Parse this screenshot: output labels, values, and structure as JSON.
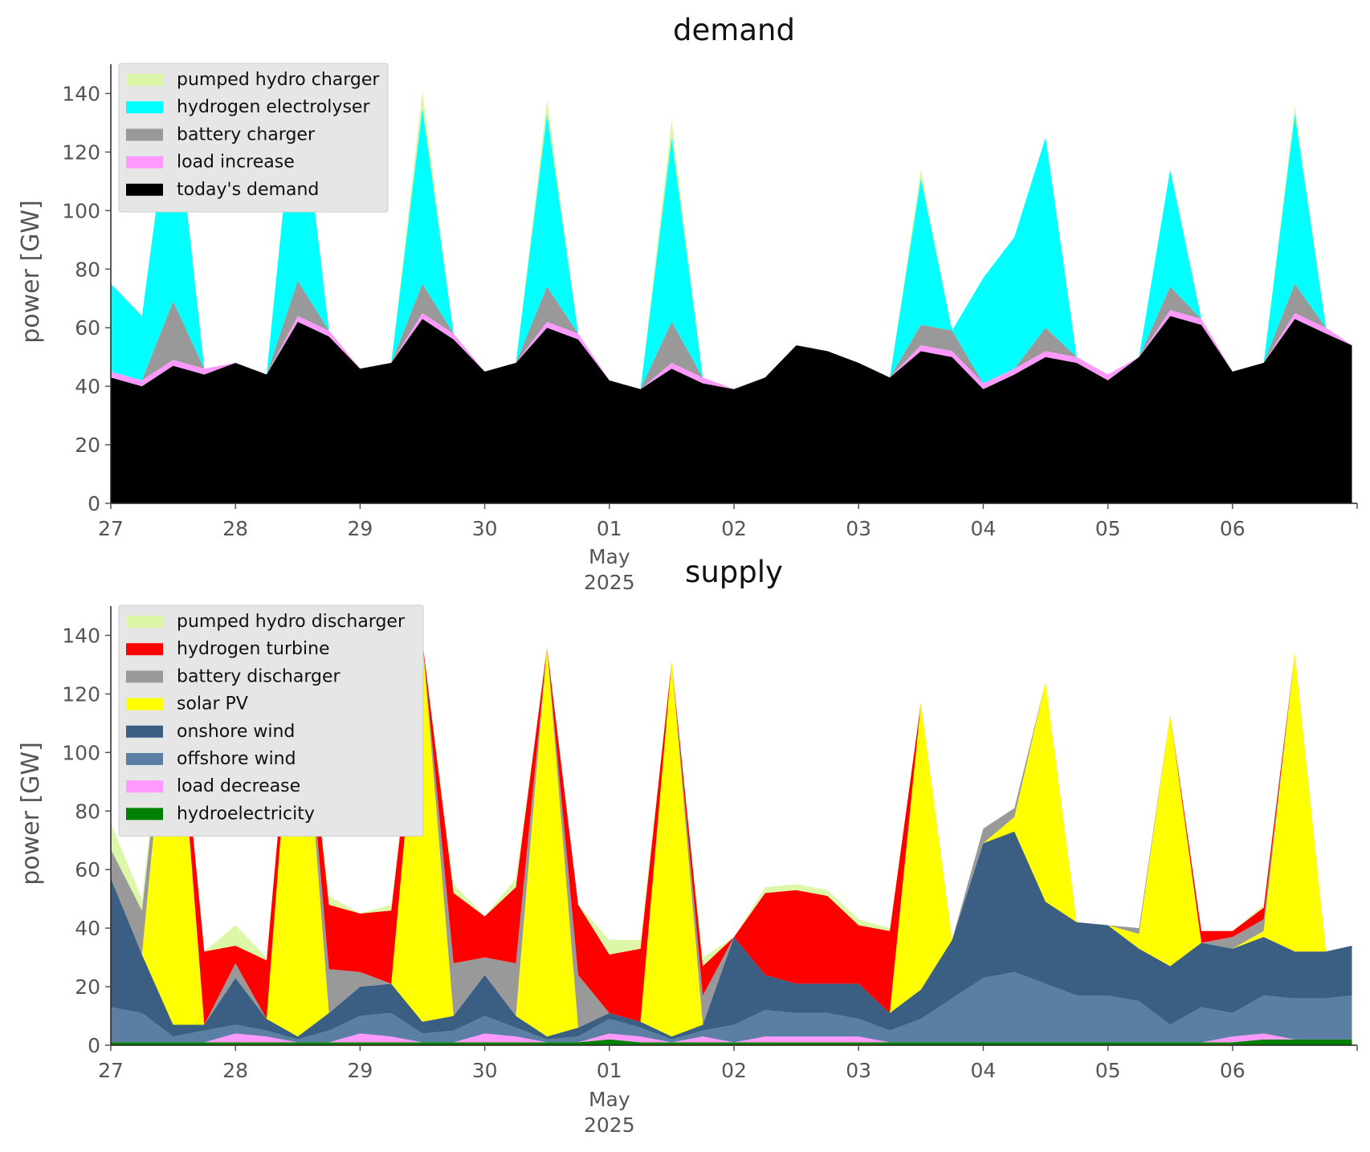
{
  "chart_data": [
    {
      "type": "area",
      "stacked": true,
      "title": "demand",
      "ylabel": "power [GW]",
      "xlabel": "",
      "ylim": [
        0,
        150
      ],
      "yticks": [
        0,
        20,
        40,
        60,
        80,
        100,
        120,
        140
      ],
      "x_days": [
        "27",
        "28",
        "29",
        "30",
        "01",
        "02",
        "03",
        "04",
        "05",
        "06"
      ],
      "x_month_label": "May",
      "x_year_label": "2025",
      "x_start": "2025-04-27 00:00",
      "x_end": "2025-05-07 00:00",
      "grid": true,
      "legend_position": "top-left",
      "legend": [
        {
          "label": "pumped hydro charger",
          "color": "#dcf7a8"
        },
        {
          "label": "hydrogen electrolyser",
          "color": "#00ffff"
        },
        {
          "label": "battery charger",
          "color": "#999999"
        },
        {
          "label": "load increase",
          "color": "#ff99ff"
        },
        {
          "label": "today's demand",
          "color": "#000000"
        }
      ],
      "x": [
        "2025-04-27 00:00",
        "2025-04-27 06:00",
        "2025-04-27 12:00",
        "2025-04-27 18:00",
        "2025-04-28 00:00",
        "2025-04-28 06:00",
        "2025-04-28 12:00",
        "2025-04-28 18:00",
        "2025-04-29 00:00",
        "2025-04-29 06:00",
        "2025-04-29 12:00",
        "2025-04-29 18:00",
        "2025-04-30 00:00",
        "2025-04-30 06:00",
        "2025-04-30 12:00",
        "2025-04-30 18:00",
        "2025-05-01 00:00",
        "2025-05-01 06:00",
        "2025-05-01 12:00",
        "2025-05-01 18:00",
        "2025-05-02 00:00",
        "2025-05-02 06:00",
        "2025-05-02 12:00",
        "2025-05-02 18:00",
        "2025-05-03 00:00",
        "2025-05-03 06:00",
        "2025-05-03 12:00",
        "2025-05-03 18:00",
        "2025-05-04 00:00",
        "2025-05-04 06:00",
        "2025-05-04 12:00",
        "2025-05-04 18:00",
        "2025-05-05 00:00",
        "2025-05-05 06:00",
        "2025-05-05 12:00",
        "2025-05-05 18:00",
        "2025-05-06 00:00",
        "2025-05-06 06:00",
        "2025-05-06 12:00",
        "2025-05-06 18:00",
        "2025-05-06 23:00"
      ],
      "series": [
        {
          "name": "today's demand",
          "color": "#000000",
          "values": [
            43,
            40,
            47,
            44,
            48,
            44,
            62,
            57,
            46,
            48,
            63,
            56,
            45,
            48,
            60,
            56,
            42,
            39,
            46,
            41,
            39,
            43,
            54,
            52,
            48,
            43,
            52,
            50,
            39,
            44,
            50,
            48,
            42,
            50,
            64,
            61,
            45,
            48,
            63,
            58,
            54
          ]
        },
        {
          "name": "load increase",
          "color": "#ff99ff",
          "values": [
            2,
            2,
            2,
            2,
            0,
            0,
            2,
            2,
            0,
            0,
            2,
            2,
            0,
            0,
            2,
            2,
            0,
            0,
            2,
            2,
            0,
            0,
            0,
            0,
            0,
            0,
            2,
            2,
            2,
            2,
            2,
            2,
            2,
            0,
            2,
            2,
            0,
            0,
            2,
            2,
            0
          ]
        },
        {
          "name": "battery charger",
          "color": "#999999",
          "values": [
            0,
            0,
            20,
            0,
            0,
            0,
            12,
            0,
            0,
            0,
            10,
            0,
            0,
            0,
            12,
            0,
            0,
            0,
            14,
            0,
            0,
            0,
            0,
            0,
            0,
            0,
            7,
            7,
            0,
            0,
            8,
            0,
            0,
            0,
            8,
            0,
            0,
            0,
            10,
            0,
            0
          ]
        },
        {
          "name": "hydrogen electrolyser",
          "color": "#00ffff",
          "values": [
            30,
            22,
            75,
            0,
            0,
            0,
            74,
            0,
            0,
            0,
            60,
            0,
            0,
            0,
            59,
            0,
            0,
            0,
            63,
            0,
            0,
            0,
            0,
            0,
            0,
            0,
            50,
            0,
            36,
            45,
            65,
            0,
            0,
            0,
            40,
            0,
            0,
            0,
            58,
            0,
            0
          ]
        },
        {
          "name": "pumped hydro charger",
          "color": "#dcf7a8",
          "values": [
            0,
            0,
            1,
            0,
            0,
            0,
            1,
            0,
            0,
            0,
            6,
            0,
            0,
            0,
            5,
            0,
            0,
            0,
            6,
            0,
            0,
            0,
            0,
            0,
            0,
            0,
            3,
            0,
            0,
            0,
            0,
            0,
            0,
            0,
            0,
            0,
            0,
            0,
            3,
            0,
            0
          ]
        }
      ]
    },
    {
      "type": "area",
      "stacked": true,
      "title": "supply",
      "ylabel": "power [GW]",
      "xlabel": "",
      "ylim": [
        0,
        150
      ],
      "yticks": [
        0,
        20,
        40,
        60,
        80,
        100,
        120,
        140
      ],
      "x_days": [
        "27",
        "28",
        "29",
        "30",
        "01",
        "02",
        "03",
        "04",
        "05",
        "06"
      ],
      "x_month_label": "May",
      "x_year_label": "2025",
      "x_start": "2025-04-27 00:00",
      "x_end": "2025-05-07 00:00",
      "grid": true,
      "legend_position": "top-left",
      "legend": [
        {
          "label": "pumped hydro discharger",
          "color": "#dcf7a8"
        },
        {
          "label": "hydrogen turbine",
          "color": "#ff0000"
        },
        {
          "label": "battery discharger",
          "color": "#999999"
        },
        {
          "label": "solar PV",
          "color": "#ffff00"
        },
        {
          "label": "onshore wind",
          "color": "#3a5f82"
        },
        {
          "label": "offshore wind",
          "color": "#5b7ea3"
        },
        {
          "label": "load decrease",
          "color": "#ff99ff"
        },
        {
          "label": "hydroelectricity",
          "color": "#008000"
        }
      ],
      "x": [
        "2025-04-27 00:00",
        "2025-04-27 06:00",
        "2025-04-27 12:00",
        "2025-04-27 18:00",
        "2025-04-28 00:00",
        "2025-04-28 06:00",
        "2025-04-28 12:00",
        "2025-04-28 18:00",
        "2025-04-29 00:00",
        "2025-04-29 06:00",
        "2025-04-29 12:00",
        "2025-04-29 18:00",
        "2025-04-30 00:00",
        "2025-04-30 06:00",
        "2025-04-30 12:00",
        "2025-04-30 18:00",
        "2025-05-01 00:00",
        "2025-05-01 06:00",
        "2025-05-01 12:00",
        "2025-05-01 18:00",
        "2025-05-02 00:00",
        "2025-05-02 06:00",
        "2025-05-02 12:00",
        "2025-05-02 18:00",
        "2025-05-03 00:00",
        "2025-05-03 06:00",
        "2025-05-03 12:00",
        "2025-05-03 18:00",
        "2025-05-04 00:00",
        "2025-05-04 06:00",
        "2025-05-04 12:00",
        "2025-05-04 18:00",
        "2025-05-05 00:00",
        "2025-05-05 06:00",
        "2025-05-05 12:00",
        "2025-05-05 18:00",
        "2025-05-06 00:00",
        "2025-05-06 06:00",
        "2025-05-06 12:00",
        "2025-05-06 18:00",
        "2025-05-06 23:00"
      ],
      "series": [
        {
          "name": "hydroelectricity",
          "color": "#008000",
          "values": [
            1,
            1,
            1,
            1,
            1,
            1,
            1,
            1,
            1,
            1,
            1,
            1,
            1,
            1,
            1,
            1,
            2,
            1,
            1,
            1,
            1,
            1,
            1,
            1,
            1,
            1,
            1,
            1,
            1,
            1,
            1,
            1,
            1,
            1,
            1,
            1,
            1,
            2,
            2,
            2,
            2
          ]
        },
        {
          "name": "load decrease",
          "color": "#ff99ff",
          "values": [
            0,
            0,
            0,
            0,
            3,
            2,
            0,
            0,
            3,
            2,
            0,
            0,
            3,
            2,
            0,
            0,
            2,
            2,
            0,
            2,
            0,
            2,
            2,
            2,
            2,
            0,
            0,
            0,
            0,
            0,
            0,
            0,
            0,
            0,
            0,
            0,
            2,
            2,
            0,
            0,
            0
          ]
        },
        {
          "name": "offshore wind",
          "color": "#5b7ea3",
          "values": [
            12,
            10,
            2,
            4,
            3,
            2,
            1,
            4,
            6,
            8,
            3,
            4,
            6,
            3,
            1,
            2,
            5,
            3,
            1,
            2,
            6,
            9,
            8,
            8,
            6,
            4,
            8,
            15,
            22,
            24,
            20,
            16,
            16,
            14,
            6,
            12,
            8,
            13,
            14,
            14,
            15
          ]
        },
        {
          "name": "onshore wind",
          "color": "#3a5f82",
          "values": [
            44,
            20,
            4,
            2,
            16,
            4,
            1,
            6,
            10,
            10,
            4,
            5,
            14,
            4,
            1,
            3,
            2,
            2,
            1,
            2,
            30,
            12,
            10,
            10,
            12,
            6,
            10,
            20,
            46,
            48,
            28,
            25,
            24,
            18,
            20,
            22,
            22,
            20,
            16,
            16,
            17
          ]
        },
        {
          "name": "solar PV",
          "color": "#ffff00",
          "values": [
            0,
            0,
            135,
            0,
            0,
            0,
            145,
            0,
            0,
            0,
            130,
            0,
            0,
            0,
            133,
            0,
            0,
            0,
            128,
            0,
            0,
            0,
            0,
            0,
            0,
            0,
            98,
            0,
            0,
            5,
            75,
            0,
            0,
            5,
            86,
            0,
            0,
            2,
            102,
            0,
            0
          ]
        },
        {
          "name": "battery discharger",
          "color": "#999999",
          "values": [
            10,
            15,
            0,
            0,
            5,
            0,
            0,
            15,
            5,
            0,
            0,
            18,
            6,
            18,
            0,
            18,
            0,
            0,
            0,
            10,
            0,
            0,
            0,
            0,
            0,
            0,
            0,
            0,
            5,
            3,
            0,
            0,
            0,
            2,
            0,
            0,
            4,
            4,
            0,
            0,
            0
          ]
        },
        {
          "name": "hydrogen turbine",
          "color": "#ff0000",
          "values": [
            0,
            0,
            0,
            25,
            6,
            20,
            0,
            22,
            20,
            25,
            0,
            24,
            14,
            26,
            0,
            24,
            20,
            25,
            0,
            10,
            0,
            28,
            32,
            30,
            20,
            28,
            0,
            0,
            0,
            0,
            0,
            0,
            0,
            0,
            0,
            4,
            2,
            4,
            0,
            0,
            0
          ]
        },
        {
          "name": "pumped hydro discharger",
          "color": "#dcf7a8",
          "values": [
            9,
            4,
            0,
            0,
            7,
            1,
            0,
            3,
            0,
            2,
            0,
            3,
            0,
            3,
            0,
            0,
            5,
            3,
            0,
            3,
            0,
            2,
            2,
            2,
            2,
            1,
            0,
            0,
            0,
            0,
            0,
            0,
            0,
            0,
            0,
            0,
            0,
            1,
            0,
            0,
            0
          ]
        }
      ]
    }
  ]
}
